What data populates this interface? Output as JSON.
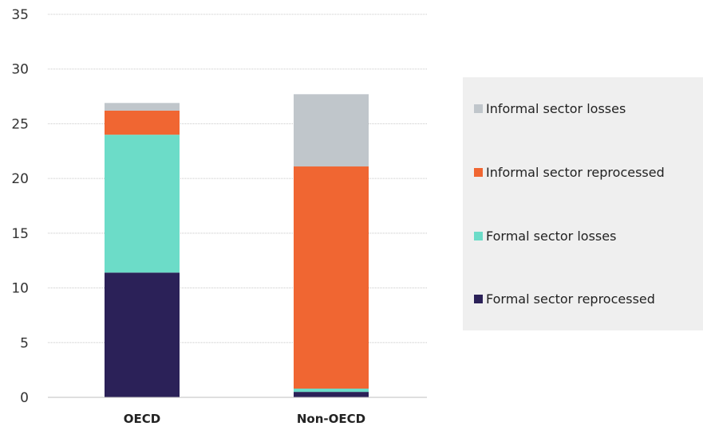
{
  "chart_data": {
    "type": "bar",
    "stacked": true,
    "categories": [
      "OECD",
      "Non-OECD"
    ],
    "series": [
      {
        "name": "Formal sector reprocessed",
        "values": [
          11.4,
          0.5
        ],
        "color": "#2b2158"
      },
      {
        "name": "Formal sector losses",
        "values": [
          12.6,
          0.3
        ],
        "color": "#6cdcc8"
      },
      {
        "name": "Informal sector reprocessed",
        "values": [
          2.2,
          20.3
        ],
        "color": "#f06632"
      },
      {
        "name": "Informal sector losses",
        "values": [
          0.7,
          6.6
        ],
        "color": "#c0c6cb"
      }
    ],
    "yticks": [
      "0",
      "5",
      "10",
      "15",
      "20",
      "25",
      "30",
      "35"
    ],
    "ylim": [
      0,
      35
    ],
    "grid": true,
    "legend_position": "right"
  }
}
